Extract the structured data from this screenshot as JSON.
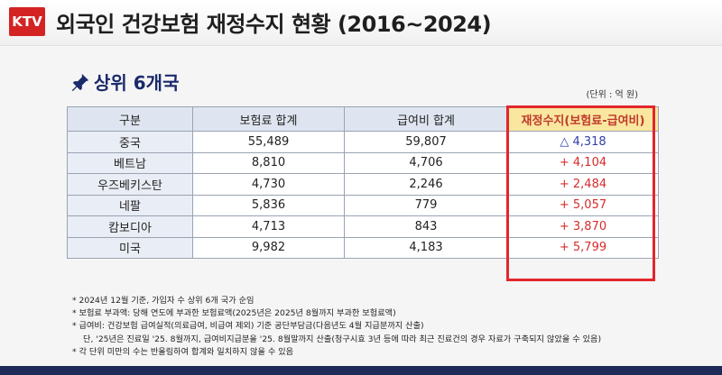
{
  "header": {
    "logo": "KTV",
    "title": "외국인 건강보험 재정수지 현황 (2016~2024)"
  },
  "section": {
    "subtitle": "상위 6개국",
    "unit": "(단위 : 억 원)"
  },
  "table": {
    "headers": [
      "구분",
      "보험료 합계",
      "급여비 합계",
      "재정수지(보험료-급여비)"
    ],
    "rows": [
      [
        "중국",
        "55,489",
        "59,807",
        "△ 4,318"
      ],
      [
        "베트남",
        "8,810",
        "4,706",
        "+ 4,104"
      ],
      [
        "우즈베키스탄",
        "4,730",
        "2,246",
        "+ 2,484"
      ],
      [
        "네팔",
        "5,836",
        "779",
        "+ 5,057"
      ],
      [
        "캄보디아",
        "4,713",
        "843",
        "+ 3,870"
      ],
      [
        "미국",
        "9,982",
        "4,183",
        "+ 5,799"
      ]
    ]
  },
  "notes": [
    "* 2024년 12월 기준, 가입자 수 상위 6개 국가 순임",
    "* 보험료 부과액: 당해 연도에 부과한 보험료액(2025년은 2025년 8월까지 부과한 보험료액)",
    "* 급여비: 건강보험 급여실적(의료급여, 비급여 제외) 기준 공단부담금(다음년도 4월 지급분까지 산출)",
    "단, '25년은 진료일 '25. 8월까지, 급여비지급분을 '25. 8월말까지 산출(청구시효 3년 등에 따라 최근 진료건의 경우 자료가 구축되지 않았을 수 있음)",
    "* 각 단위 미만의 수는 반올림하여 합계와 일치하지 않을 수 있음"
  ],
  "colors": {
    "accent": "#e3262c",
    "navy": "#1e2a57",
    "negative": "#3240a8",
    "positive": "#d62c2c"
  }
}
